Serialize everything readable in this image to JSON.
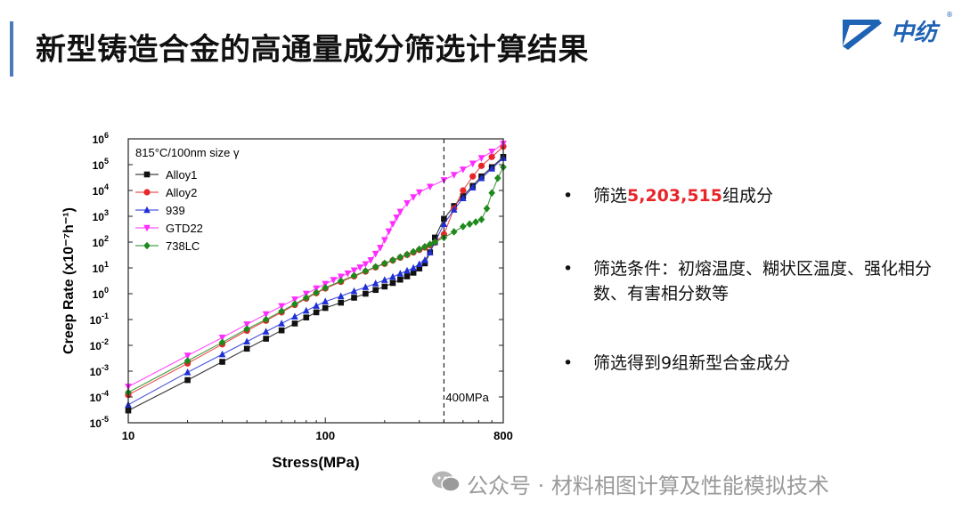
{
  "slide": {
    "title": "新型铸造合金的高通量成分筛选计算结果",
    "logo_text": "中纺",
    "logo_reg": "®",
    "accent_color": "#4a7bbd"
  },
  "bullets": [
    {
      "marker": "•",
      "prefix": "筛选",
      "highlight": "5,203,515",
      "suffix": "组成分"
    },
    {
      "marker": "•",
      "text": "筛选条件：初熔温度、糊状区温度、强化相分数、有害相分数等"
    },
    {
      "marker": "•",
      "text": "筛选得到9组新型合金成分"
    }
  ],
  "highlight_color": "#e8262a",
  "watermark": {
    "text": "公众号 · 材料相图计算及性能模拟技术",
    "icon": "wechat-icon"
  },
  "chart_data": {
    "type": "line",
    "scale": "log-log",
    "condition_label": "815°C/100nm size γ",
    "xlabel": "Stress(MPa)",
    "ylabel": "Creep Rate (x10⁻⁷h⁻¹)",
    "xlim": [
      10,
      800
    ],
    "ylim": [
      1e-05,
      1000000.0
    ],
    "xticks": [
      10,
      100,
      800
    ],
    "xtick_labels": [
      "10",
      "100",
      "800"
    ],
    "yticks_exp": [
      -5,
      -4,
      -3,
      -2,
      -1,
      0,
      1,
      2,
      3,
      4,
      5,
      6
    ],
    "ytick_base": "10",
    "reference_line": {
      "x": 400,
      "label": "400MPa"
    },
    "series": [
      {
        "name": "Alloy1",
        "color": "#111111",
        "marker": "square",
        "x": [
          10,
          20,
          30,
          40,
          50,
          60,
          70,
          80,
          90,
          100,
          120,
          140,
          160,
          180,
          200,
          220,
          240,
          260,
          280,
          300,
          320,
          340,
          360,
          400,
          450,
          500,
          560,
          620,
          700,
          800
        ],
        "y": [
          3e-05,
          0.00045,
          0.0023,
          0.0074,
          0.018,
          0.038,
          0.07,
          0.12,
          0.19,
          0.28,
          0.45,
          0.7,
          1.0,
          1.4,
          1.9,
          2.6,
          3.5,
          4.7,
          6.5,
          9.5,
          15,
          40,
          150,
          800,
          2500,
          6000,
          15000,
          35000,
          80000,
          200000
        ]
      },
      {
        "name": "Alloy2",
        "color": "#e8262a",
        "marker": "circle",
        "x": [
          10,
          20,
          30,
          40,
          50,
          60,
          70,
          80,
          90,
          100,
          120,
          140,
          160,
          180,
          200,
          220,
          240,
          260,
          280,
          300,
          320,
          340,
          360,
          400,
          450,
          500,
          560,
          620,
          700,
          800
        ],
        "y": [
          0.00012,
          0.002,
          0.011,
          0.037,
          0.09,
          0.19,
          0.37,
          0.65,
          1.05,
          1.6,
          2.9,
          4.7,
          7.2,
          10.5,
          14.5,
          19.5,
          25,
          32,
          40,
          50,
          62,
          76,
          95,
          200,
          2000,
          10000,
          35000,
          90000,
          200000,
          500000
        ]
      },
      {
        "name": "939",
        "color": "#1f2fd6",
        "marker": "triangle-up",
        "x": [
          10,
          20,
          30,
          40,
          50,
          60,
          70,
          80,
          90,
          100,
          120,
          140,
          160,
          180,
          200,
          220,
          240,
          260,
          280,
          300,
          320,
          340,
          360,
          400,
          450,
          500,
          560,
          620,
          700,
          800
        ],
        "y": [
          5e-05,
          0.0009,
          0.0045,
          0.014,
          0.034,
          0.07,
          0.13,
          0.22,
          0.34,
          0.5,
          0.8,
          1.25,
          1.8,
          2.5,
          3.4,
          4.5,
          6,
          7.8,
          10,
          14,
          20,
          40,
          100,
          500,
          1800,
          5000,
          13000,
          30000,
          70000,
          180000
        ]
      },
      {
        "name": "GTD22",
        "color": "#ff2bff",
        "marker": "triangle-down",
        "x": [
          10,
          20,
          30,
          40,
          50,
          60,
          70,
          80,
          90,
          100,
          110,
          120,
          130,
          140,
          150,
          160,
          170,
          180,
          190,
          200,
          210,
          220,
          230,
          240,
          260,
          280,
          300,
          340,
          400,
          450,
          500,
          560,
          620,
          700,
          800
        ],
        "y": [
          0.00025,
          0.004,
          0.02,
          0.065,
          0.16,
          0.33,
          0.6,
          1.0,
          1.6,
          2.4,
          3.4,
          4.6,
          6.1,
          8.0,
          10.5,
          14,
          20,
          35,
          60,
          120,
          260,
          500,
          900,
          1500,
          3200,
          5500,
          8500,
          14000,
          25000,
          40000,
          65000,
          110000,
          180000,
          320000,
          650000
        ]
      },
      {
        "name": "738LC",
        "color": "#1e8a1e",
        "marker": "diamond",
        "x": [
          10,
          20,
          30,
          40,
          50,
          60,
          70,
          80,
          90,
          100,
          120,
          140,
          160,
          180,
          200,
          220,
          240,
          260,
          280,
          300,
          320,
          340,
          360,
          400,
          450,
          500,
          540,
          580,
          620,
          660,
          700,
          750,
          800
        ],
        "y": [
          0.00015,
          0.0025,
          0.013,
          0.043,
          0.1,
          0.21,
          0.4,
          0.7,
          1.1,
          1.7,
          3.1,
          5.0,
          7.6,
          11,
          15,
          20,
          26,
          33,
          42,
          53,
          66,
          82,
          100,
          150,
          250,
          400,
          500,
          600,
          750,
          2000,
          8000,
          30000,
          80000
        ]
      }
    ]
  }
}
